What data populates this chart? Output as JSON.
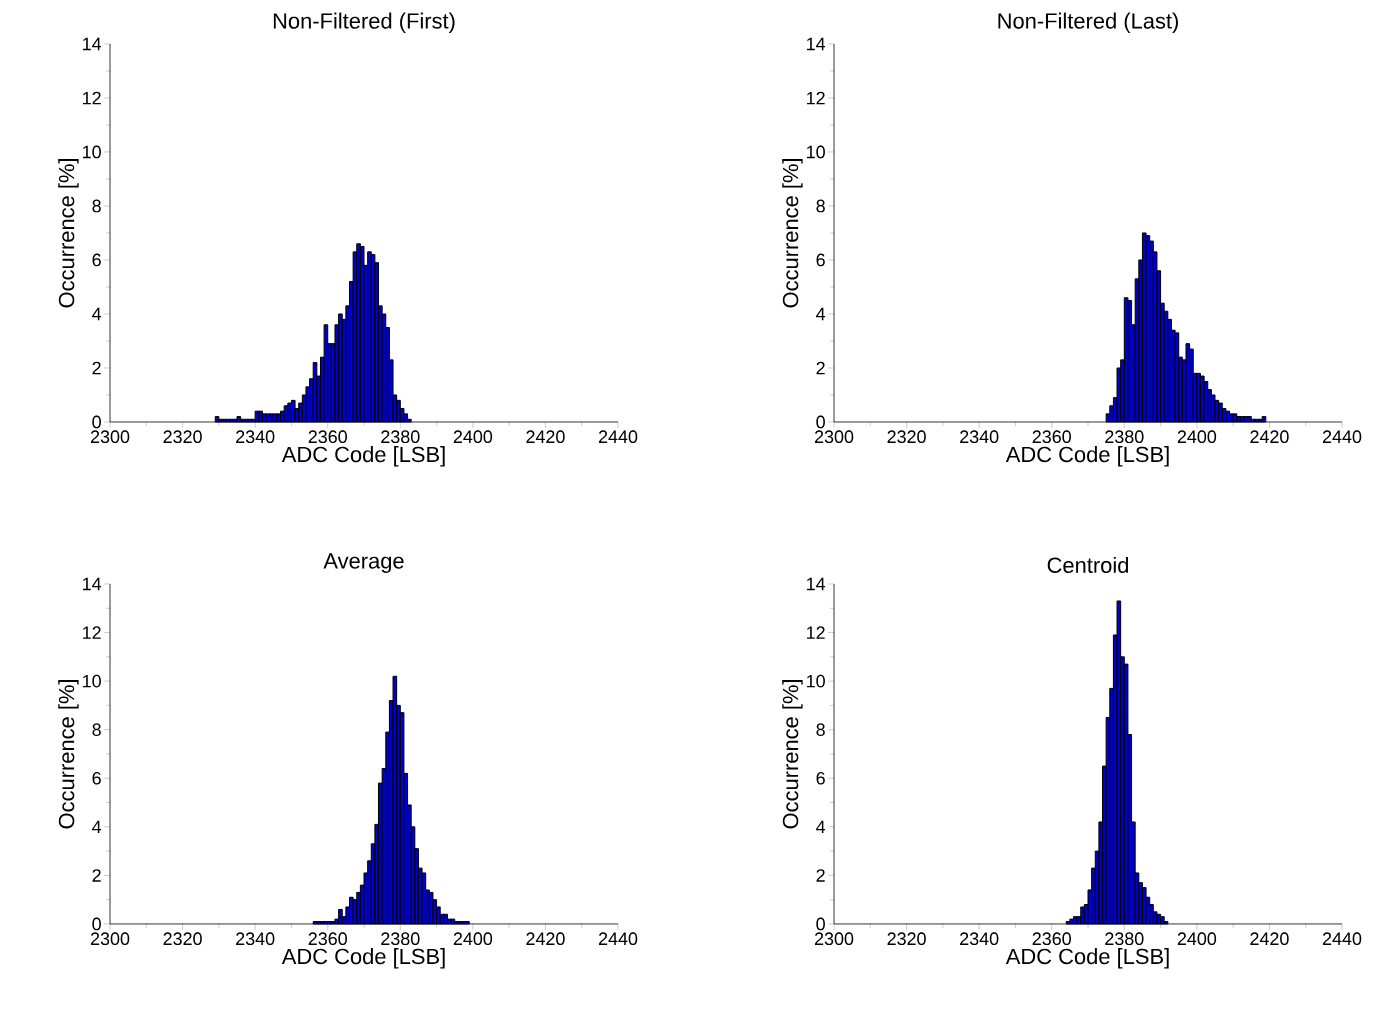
{
  "chart_data": [
    {
      "type": "histogram",
      "title": "Non-Filtered (First)",
      "xlabel": "ADC Code [LSB]",
      "ylabel": "Occurrence [%]",
      "color": "#0000c8",
      "xlim": [
        2300,
        2440
      ],
      "xticks": [
        2300,
        2320,
        2340,
        2360,
        2380,
        2400,
        2420,
        2440
      ],
      "ylim": [
        0,
        14
      ],
      "yticks": [
        0,
        2,
        4,
        6,
        8,
        10,
        12,
        14
      ],
      "bins": [
        2329,
        2330,
        2331,
        2332,
        2333,
        2334,
        2335,
        2336,
        2337,
        2338,
        2339,
        2340,
        2341,
        2342,
        2343,
        2344,
        2345,
        2346,
        2347,
        2348,
        2349,
        2350,
        2351,
        2352,
        2353,
        2354,
        2355,
        2356,
        2357,
        2358,
        2359,
        2360,
        2361,
        2362,
        2363,
        2364,
        2365,
        2366,
        2367,
        2368,
        2369,
        2370,
        2371,
        2372,
        2373,
        2374,
        2375,
        2376,
        2377,
        2378,
        2379,
        2380,
        2381,
        2382,
        2383
      ],
      "values": [
        0.2,
        0.1,
        0.1,
        0.1,
        0.1,
        0.1,
        0.2,
        0.1,
        0.1,
        0.1,
        0.1,
        0.4,
        0.4,
        0.3,
        0.3,
        0.3,
        0.3,
        0.3,
        0.4,
        0.6,
        0.7,
        0.8,
        0.5,
        0.7,
        1.0,
        1.3,
        1.6,
        2.2,
        1.7,
        2.4,
        3.6,
        2.9,
        2.9,
        3.6,
        4.0,
        3.8,
        4.3,
        5.2,
        6.3,
        6.6,
        6.5,
        5.8,
        6.3,
        6.2,
        5.9,
        4.3,
        4.0,
        3.5,
        2.3,
        1.0,
        0.8,
        0.5,
        0.3,
        0.1
      ]
    },
    {
      "type": "histogram",
      "title": "Non-Filtered (Last)",
      "xlabel": "ADC Code [LSB]",
      "ylabel": "Occurrence [%]",
      "color": "#0000c8",
      "xlim": [
        2300,
        2440
      ],
      "xticks": [
        2300,
        2320,
        2340,
        2360,
        2380,
        2400,
        2420,
        2440
      ],
      "ylim": [
        0,
        14
      ],
      "yticks": [
        0,
        2,
        4,
        6,
        8,
        10,
        12,
        14
      ],
      "bins": [
        2375,
        2376,
        2377,
        2378,
        2379,
        2380,
        2381,
        2382,
        2383,
        2384,
        2385,
        2386,
        2387,
        2388,
        2389,
        2390,
        2391,
        2392,
        2393,
        2394,
        2395,
        2396,
        2397,
        2398,
        2399,
        2400,
        2401,
        2402,
        2403,
        2404,
        2405,
        2406,
        2407,
        2408,
        2409,
        2410,
        2411,
        2412,
        2413,
        2414,
        2415,
        2416,
        2417,
        2418,
        2419
      ],
      "values": [
        0.3,
        0.6,
        0.9,
        2.0,
        2.3,
        4.6,
        4.5,
        3.6,
        5.3,
        6.0,
        7.0,
        6.9,
        6.7,
        6.3,
        5.6,
        4.4,
        4.1,
        3.8,
        3.4,
        3.3,
        2.4,
        2.3,
        2.9,
        2.7,
        1.8,
        1.8,
        1.7,
        1.5,
        1.2,
        1.0,
        0.8,
        0.7,
        0.5,
        0.4,
        0.3,
        0.3,
        0.2,
        0.2,
        0.2,
        0.2,
        0.1,
        0.1,
        0.1,
        0.2
      ]
    },
    {
      "type": "histogram",
      "title": "Average",
      "xlabel": "ADC Code [LSB]",
      "ylabel": "Occurrence [%]",
      "color": "#0000c8",
      "xlim": [
        2300,
        2440
      ],
      "xticks": [
        2300,
        2320,
        2340,
        2360,
        2380,
        2400,
        2420,
        2440
      ],
      "ylim": [
        0,
        14
      ],
      "yticks": [
        0,
        2,
        4,
        6,
        8,
        10,
        12,
        14
      ],
      "bins": [
        2356,
        2357,
        2358,
        2359,
        2360,
        2361,
        2362,
        2363,
        2364,
        2365,
        2366,
        2367,
        2368,
        2369,
        2370,
        2371,
        2372,
        2373,
        2374,
        2375,
        2376,
        2377,
        2378,
        2379,
        2380,
        2381,
        2382,
        2383,
        2384,
        2385,
        2386,
        2387,
        2388,
        2389,
        2390,
        2391,
        2392,
        2393,
        2394,
        2395,
        2396,
        2397,
        2398,
        2399
      ],
      "values": [
        0.1,
        0.1,
        0.1,
        0.1,
        0.1,
        0.1,
        0.2,
        0.6,
        0.3,
        0.7,
        1.1,
        1.0,
        1.3,
        1.6,
        2.1,
        2.6,
        3.3,
        4.1,
        5.8,
        6.4,
        7.9,
        9.2,
        10.2,
        9.0,
        8.7,
        6.2,
        4.9,
        4.0,
        3.1,
        2.3,
        2.1,
        1.4,
        1.3,
        1.0,
        0.7,
        0.4,
        0.4,
        0.2,
        0.2,
        0.1,
        0.1,
        0.1,
        0.1
      ]
    },
    {
      "type": "histogram",
      "title": "Centroid",
      "xlabel": "ADC Code [LSB]",
      "ylabel": "Occurrence [%]",
      "color": "#0000c8",
      "xlim": [
        2300,
        2440
      ],
      "xticks": [
        2300,
        2320,
        2340,
        2360,
        2380,
        2400,
        2420,
        2440
      ],
      "ylim": [
        0,
        14
      ],
      "yticks": [
        0,
        2,
        4,
        6,
        8,
        10,
        12,
        14
      ],
      "bins": [
        2364,
        2365,
        2366,
        2367,
        2368,
        2369,
        2370,
        2371,
        2372,
        2373,
        2374,
        2375,
        2376,
        2377,
        2378,
        2379,
        2380,
        2381,
        2382,
        2383,
        2384,
        2385,
        2386,
        2387,
        2388,
        2389,
        2390,
        2391,
        2392
      ],
      "values": [
        0.1,
        0.2,
        0.3,
        0.3,
        0.7,
        0.8,
        1.4,
        2.3,
        3.0,
        4.2,
        6.5,
        8.5,
        9.7,
        11.9,
        13.3,
        11.0,
        10.7,
        7.8,
        4.2,
        2.1,
        1.7,
        1.5,
        1.1,
        0.8,
        0.5,
        0.4,
        0.3,
        0.1
      ]
    }
  ]
}
